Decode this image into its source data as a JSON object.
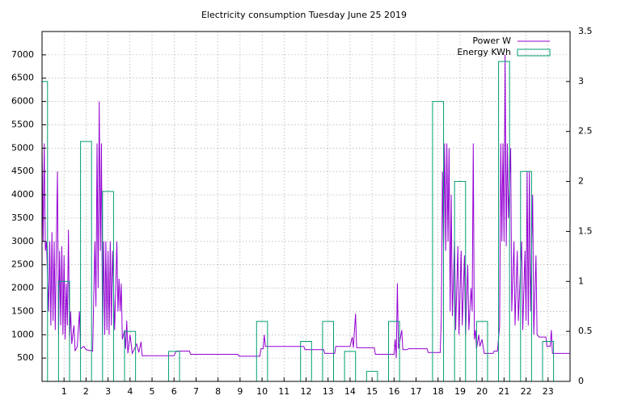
{
  "chart_data": {
    "type": "combo",
    "title": "Electricity consumption Tuesday June 25 2019",
    "xlim": [
      0,
      24
    ],
    "xticks": [
      1,
      2,
      3,
      4,
      5,
      6,
      7,
      8,
      9,
      10,
      11,
      12,
      13,
      14,
      15,
      16,
      17,
      18,
      19,
      20,
      21,
      22,
      23
    ],
    "ylim": [
      0,
      7500
    ],
    "yticks": [
      500,
      1000,
      1500,
      2000,
      2500,
      3000,
      3500,
      4000,
      4500,
      5000,
      5500,
      6000,
      6500,
      7000
    ],
    "y2lim": [
      0,
      3.5
    ],
    "y2ticks": [
      0,
      0.5,
      1,
      1.5,
      2,
      2.5,
      3,
      3.5
    ],
    "grid": true,
    "legend": "top-right",
    "series": [
      {
        "name": "Power W",
        "type": "line",
        "color": "#9400d3",
        "x": [
          0.0,
          0.05,
          0.1,
          0.15,
          0.2,
          0.3,
          0.35,
          0.4,
          0.45,
          0.5,
          0.55,
          0.6,
          0.65,
          0.7,
          0.75,
          0.8,
          0.85,
          0.9,
          0.95,
          1.0,
          1.05,
          1.1,
          1.15,
          1.2,
          1.25,
          1.3,
          1.35,
          1.45,
          1.5,
          1.6,
          1.7,
          1.75,
          1.9,
          2.0,
          2.3,
          2.4,
          2.45,
          2.5,
          2.55,
          2.6,
          2.65,
          2.7,
          2.75,
          2.8,
          2.85,
          2.9,
          2.95,
          3.0,
          3.05,
          3.1,
          3.15,
          3.2,
          3.3,
          3.4,
          3.45,
          3.5,
          3.55,
          3.6,
          3.65,
          3.75,
          3.8,
          3.85,
          3.9,
          4.0,
          4.1,
          4.3,
          4.4,
          4.5,
          4.55,
          6.0,
          6.1,
          6.7,
          6.75,
          8.9,
          8.95,
          9.9,
          9.95,
          10.05,
          10.1,
          10.15,
          11.9,
          11.95,
          12.8,
          12.85,
          13.3,
          13.35,
          14.0,
          14.1,
          14.15,
          14.25,
          14.3,
          15.1,
          15.15,
          16.0,
          16.05,
          16.1,
          16.15,
          16.2,
          16.35,
          16.4,
          16.6,
          16.65,
          17.5,
          17.55,
          18.1,
          18.15,
          18.2,
          18.25,
          18.3,
          18.35,
          18.4,
          18.45,
          18.5,
          18.55,
          18.6,
          18.65,
          18.75,
          18.8,
          18.9,
          18.95,
          19.05,
          19.1,
          19.2,
          19.25,
          19.35,
          19.4,
          19.5,
          19.55,
          19.6,
          19.65,
          19.7,
          19.75,
          19.85,
          19.9,
          20.0,
          20.1,
          20.5,
          20.55,
          20.7,
          20.8,
          20.85,
          20.9,
          20.95,
          21.0,
          21.05,
          21.1,
          21.15,
          21.2,
          21.3,
          21.35,
          21.45,
          21.5,
          21.6,
          21.65,
          21.8,
          21.85,
          21.95,
          22.0,
          22.05,
          22.1,
          22.15,
          22.2,
          22.3,
          22.35,
          22.45,
          22.5,
          22.6,
          22.9,
          22.95,
          23.1,
          23.15,
          23.2,
          24.0
        ],
        "values": [
          5100,
          3000,
          5100,
          2800,
          3000,
          1500,
          3000,
          1200,
          3200,
          1300,
          3000,
          1100,
          2900,
          4500,
          1000,
          2800,
          1200,
          2900,
          1000,
          2700,
          900,
          2100,
          1200,
          3250,
          900,
          1500,
          800,
          1200,
          650,
          750,
          1500,
          700,
          750,
          680,
          650,
          3000,
          1600,
          5100,
          2000,
          6000,
          2800,
          5100,
          1000,
          3000,
          1000,
          3000,
          1100,
          2800,
          1000,
          3000,
          1200,
          2800,
          1100,
          3000,
          1500,
          2200,
          1500,
          2100,
          900,
          1100,
          700,
          1300,
          600,
          1000,
          600,
          800,
          620,
          850,
          550,
          550,
          650,
          650,
          580,
          580,
          540,
          540,
          700,
          700,
          1000,
          750,
          750,
          680,
          680,
          600,
          600,
          750,
          750,
          950,
          720,
          1450,
          720,
          720,
          580,
          580,
          900,
          500,
          2100,
          700,
          1100,
          680,
          680,
          700,
          700,
          620,
          620,
          1400,
          4500,
          2800,
          5100,
          2800,
          5100,
          3000,
          5000,
          1500,
          4000,
          1400,
          3000,
          1100,
          2900,
          1000,
          2800,
          1200,
          2700,
          1000,
          2500,
          1100,
          2000,
          1500,
          5100,
          900,
          1100,
          700,
          1000,
          750,
          900,
          600,
          600,
          650,
          650,
          1200,
          5100,
          3000,
          5100,
          3000,
          7000,
          2900,
          5100,
          3500,
          5000,
          1500,
          3000,
          1200,
          2800,
          1300,
          3000,
          1100,
          2800,
          1300,
          4500,
          1200,
          4500,
          1500,
          4000,
          1000,
          2700,
          1000,
          950,
          950,
          750,
          750,
          1100,
          600,
          600
        ]
      },
      {
        "name": "Energy KWh",
        "type": "boxes",
        "axis": "y2",
        "color": "#009e73",
        "x": [
          0,
          1,
          2,
          3,
          4,
          6,
          10,
          12,
          13,
          14,
          15,
          16,
          18,
          19,
          20,
          21,
          22,
          23
        ],
        "values": [
          3.0,
          1.0,
          2.4,
          1.9,
          0.5,
          0.3,
          0.6,
          0.4,
          0.6,
          0.3,
          0.1,
          0.6,
          2.8,
          2.0,
          0.6,
          3.2,
          2.1,
          0.4
        ]
      }
    ]
  }
}
